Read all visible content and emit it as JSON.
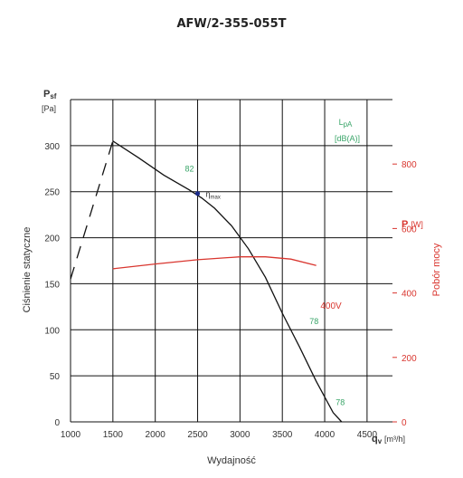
{
  "chart_data": {
    "type": "line",
    "title": "AFW/2-355-055T",
    "x_axis": {
      "label": "Wydajność",
      "unit_symbol": "q",
      "unit_sub": "v",
      "unit": "[m³/h]",
      "ticks": [
        1000,
        1500,
        2000,
        2500,
        3000,
        3500,
        4000,
        4500
      ],
      "range": [
        1000,
        4800
      ]
    },
    "y_axis": {
      "label": "Ciśnienie statyczne",
      "symbol": "P",
      "symbol_sub": "sf",
      "unit": "[Pa]",
      "ticks": [
        0,
        50,
        100,
        150,
        200,
        250,
        300
      ],
      "range": [
        0,
        350
      ]
    },
    "y2_axis": {
      "label": "Pobór mocy",
      "symbol": "P",
      "unit": "[W]",
      "ticks": [
        0,
        200,
        400,
        600,
        800
      ],
      "range": [
        0,
        1000
      ],
      "color": "#d9362f"
    },
    "grid": true,
    "sound_label": {
      "line1": "L",
      "line1_sub": "pA",
      "line2": "[dB(A)]"
    },
    "series": [
      {
        "axis": "left",
        "color": "#111111",
        "style": "solid",
        "x": [
          1500,
          1800,
          2100,
          2400,
          2550,
          2700,
          2900,
          3100,
          3300,
          3500,
          3700,
          3900,
          4100,
          4200
        ],
        "y": [
          305,
          287,
          268,
          252,
          243,
          232,
          213,
          188,
          157,
          118,
          82,
          44,
          10,
          0
        ]
      },
      {
        "axis": "left",
        "color": "#111111",
        "style": "dashed",
        "x": [
          1000,
          1500
        ],
        "y": [
          155,
          305
        ]
      },
      {
        "axis": "right",
        "color": "#d9362f",
        "style": "solid",
        "x": [
          1500,
          2000,
          2500,
          3000,
          3300,
          3600,
          3900
        ],
        "y": [
          475,
          490,
          503,
          512,
          512,
          505,
          485
        ]
      }
    ],
    "annotations": [
      {
        "text": "82",
        "x": 2350,
        "y": 272,
        "color": "green"
      },
      {
        "text": "η",
        "sub": "max",
        "x": 2500,
        "y": 248,
        "marker": true,
        "color": "dark"
      },
      {
        "text": "400V",
        "x": 3950,
        "y": 123,
        "color": "red"
      },
      {
        "text": "78",
        "x": 3820,
        "y": 106,
        "color": "green"
      },
      {
        "text": "78",
        "x": 4130,
        "y": 18,
        "color": "green"
      }
    ]
  }
}
